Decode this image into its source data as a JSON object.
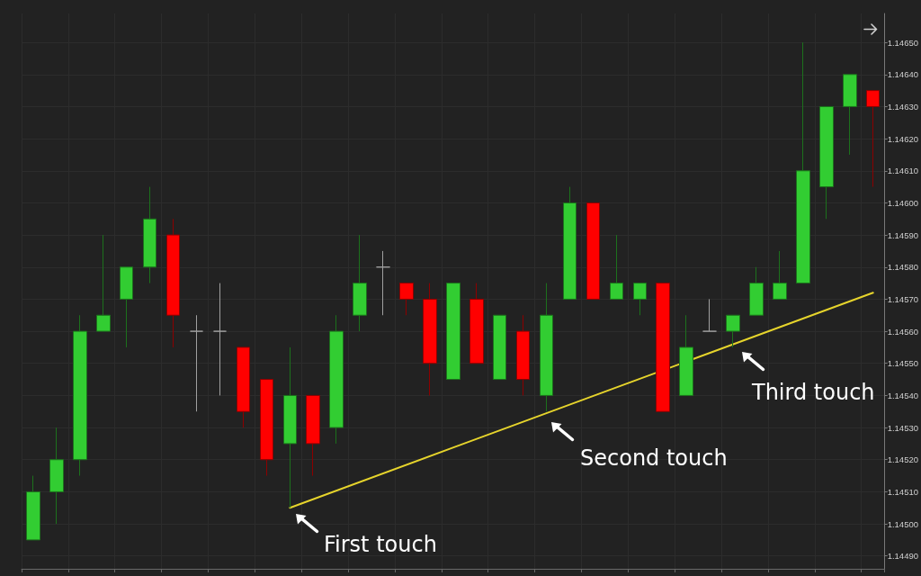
{
  "chart_data": {
    "type": "candlestick",
    "categories": [
      null,
      null,
      null,
      null,
      null,
      null,
      null,
      null,
      null,
      null,
      null,
      null,
      null,
      null,
      null,
      null,
      null,
      null,
      null,
      null,
      null,
      null,
      null,
      null,
      null,
      null,
      null,
      null,
      null,
      null,
      null,
      null,
      null,
      null,
      null,
      null,
      null
    ],
    "ohlc": [
      [
        1.14495,
        1.14515,
        1.14495,
        1.1451
      ],
      [
        1.1451,
        1.1453,
        1.145,
        1.1452
      ],
      [
        1.1452,
        1.14565,
        1.14515,
        1.1456
      ],
      [
        1.1456,
        1.1459,
        1.1456,
        1.14565
      ],
      [
        1.1457,
        1.1458,
        1.14555,
        1.1458
      ],
      [
        1.1458,
        1.14605,
        1.14575,
        1.14595
      ],
      [
        1.1459,
        1.14595,
        1.14555,
        1.14565
      ],
      [
        1.1456,
        1.14565,
        1.14535,
        1.1456
      ],
      [
        1.1456,
        1.14575,
        1.1454,
        1.1456
      ],
      [
        1.14555,
        1.14555,
        1.1453,
        1.14535
      ],
      [
        1.14545,
        1.14545,
        1.14515,
        1.1452
      ],
      [
        1.14525,
        1.14555,
        1.14505,
        1.1454
      ],
      [
        1.1454,
        1.1454,
        1.14515,
        1.14525
      ],
      [
        1.1453,
        1.14565,
        1.14525,
        1.1456
      ],
      [
        1.14565,
        1.1459,
        1.1456,
        1.14575
      ],
      [
        1.1458,
        1.14585,
        1.14565,
        1.1458
      ],
      [
        1.14575,
        1.14575,
        1.14565,
        1.1457
      ],
      [
        1.1457,
        1.14575,
        1.1454,
        1.1455
      ],
      [
        1.14545,
        1.14575,
        1.14545,
        1.14575
      ],
      [
        1.1457,
        1.14575,
        1.1455,
        1.1455
      ],
      [
        1.14545,
        1.14565,
        1.14545,
        1.14565
      ],
      [
        1.1456,
        1.14565,
        1.1454,
        1.14545
      ],
      [
        1.1454,
        1.14575,
        1.14535,
        1.14565
      ],
      [
        1.1457,
        1.14605,
        1.1457,
        1.146
      ],
      [
        1.146,
        1.146,
        1.1457,
        1.1457
      ],
      [
        1.1457,
        1.1459,
        1.1457,
        1.14575
      ],
      [
        1.1457,
        1.14575,
        1.14565,
        1.14575
      ],
      [
        1.14575,
        1.14575,
        1.14535,
        1.14535
      ],
      [
        1.1454,
        1.14565,
        1.1454,
        1.14555
      ],
      [
        1.1456,
        1.1457,
        1.1456,
        1.1456
      ],
      [
        1.1456,
        1.14565,
        1.14555,
        1.14565
      ],
      [
        1.14565,
        1.1458,
        1.14565,
        1.14575
      ],
      [
        1.1457,
        1.14585,
        1.1457,
        1.14575
      ],
      [
        1.14575,
        1.1465,
        1.14575,
        1.1461
      ],
      [
        1.14605,
        1.1463,
        1.14595,
        1.1463
      ],
      [
        1.1463,
        1.1464,
        1.14615,
        1.1464
      ],
      [
        1.14635,
        1.14635,
        1.14605,
        1.1463
      ]
    ],
    "colors": [
      "#32cd32",
      "#32cd32",
      "#32cd32",
      "#32cd32",
      "#32cd32",
      "#32cd32",
      "#ff0000",
      "#a0a0a0",
      "#a0a0a0",
      "#ff0000",
      "#ff0000",
      "#32cd32",
      "#ff0000",
      "#32cd32",
      "#32cd32",
      "#a0a0a0",
      "#ff0000",
      "#ff0000",
      "#32cd32",
      "#ff0000",
      "#32cd32",
      "#ff0000",
      "#32cd32",
      "#32cd32",
      "#ff0000",
      "#32cd32",
      "#32cd32",
      "#ff0000",
      "#32cd32",
      "#a0a0a0",
      "#32cd32",
      "#32cd32",
      "#32cd32",
      "#32cd32",
      "#32cd32",
      "#32cd32",
      "#ff0000"
    ],
    "series": [
      {
        "type": "line",
        "color": "#e6d42c",
        "marker": "none",
        "values": [
          null,
          null,
          null,
          null,
          null,
          null,
          null,
          null,
          null,
          null,
          null,
          1.14505,
          null,
          null,
          null,
          null,
          null,
          null,
          null,
          null,
          null,
          null,
          null,
          null,
          null,
          null,
          null,
          null,
          null,
          null,
          null,
          null,
          null,
          null,
          null,
          null,
          1.14572
        ]
      }
    ],
    "ylim": [
      1.14486,
      1.14659
    ],
    "yticks": [
      {
        "value": 1.1449,
        "label": "1.14490"
      },
      {
        "value": 1.145,
        "label": "1.14500"
      },
      {
        "value": 1.1451,
        "label": "1.14510"
      },
      {
        "value": 1.1452,
        "label": "1.14520"
      },
      {
        "value": 1.1453,
        "label": "1.14530"
      },
      {
        "value": 1.1454,
        "label": "1.14540"
      },
      {
        "value": 1.1455,
        "label": "1.14550"
      },
      {
        "value": 1.1456,
        "label": "1.14560"
      },
      {
        "value": 1.1457,
        "label": "1.14570"
      },
      {
        "value": 1.1458,
        "label": "1.14580"
      },
      {
        "value": 1.1459,
        "label": "1.14590"
      },
      {
        "value": 1.146,
        "label": "1.14600"
      },
      {
        "value": 1.1461,
        "label": "1.14610"
      },
      {
        "value": 1.1462,
        "label": "1.14620"
      },
      {
        "value": 1.1463,
        "label": "1.14630"
      },
      {
        "value": 1.1464,
        "label": "1.14640"
      },
      {
        "value": 1.1465,
        "label": "1.14650"
      }
    ],
    "tick_labels": "y",
    "grid": true,
    "annotations": [
      "First touch",
      "Second touch",
      "Third touch"
    ]
  }
}
